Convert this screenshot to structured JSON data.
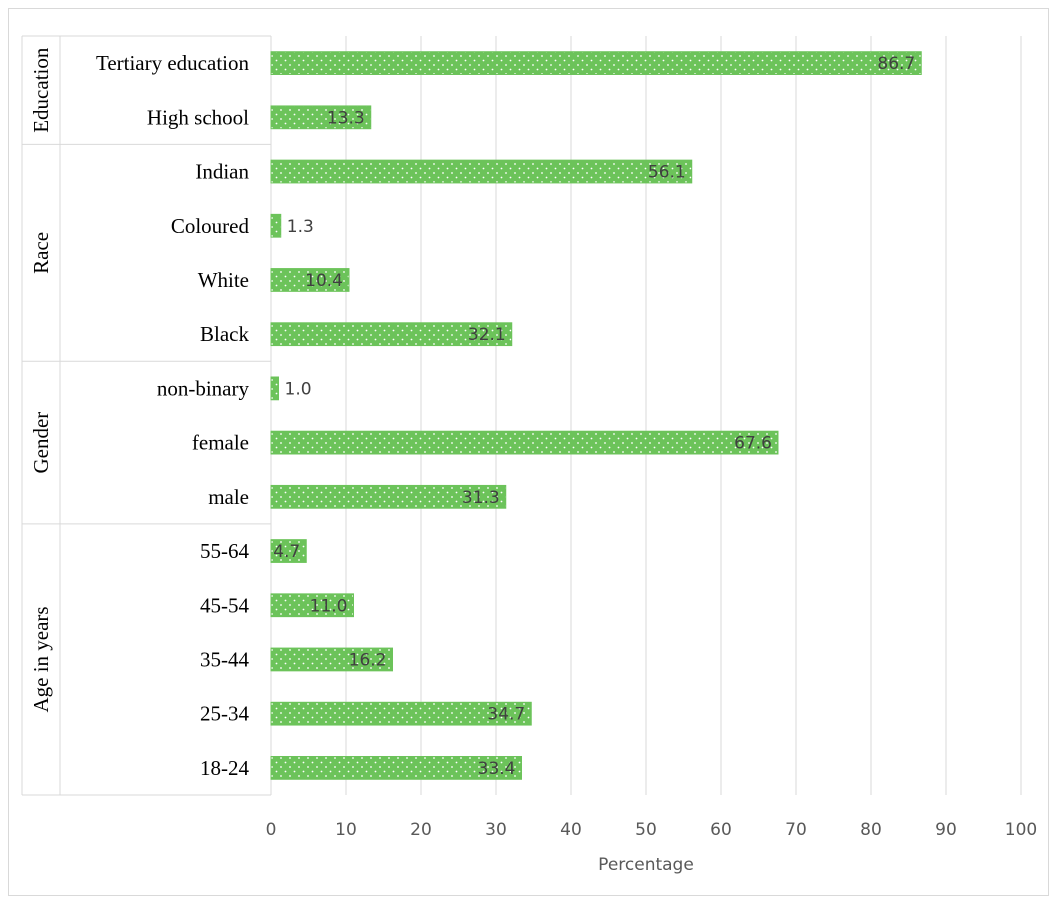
{
  "chart_data": {
    "type": "bar",
    "orientation": "horizontal",
    "xlabel": "Percentage",
    "xlim": [
      0,
      100
    ],
    "x_ticks": [
      0,
      10,
      20,
      30,
      40,
      50,
      60,
      70,
      80,
      90,
      100
    ],
    "grid": "vertical",
    "legend": "none",
    "bar_color": "#6cc35a",
    "groups": [
      {
        "name": "Education",
        "categories": [
          "Tertiary education",
          "High school"
        ],
        "values": [
          86.7,
          13.3
        ],
        "labels": [
          "86.7",
          "13.3"
        ]
      },
      {
        "name": "Race",
        "categories": [
          "Indian",
          "Coloured",
          "White",
          "Black"
        ],
        "values": [
          56.1,
          1.3,
          10.4,
          32.1
        ],
        "labels": [
          "56.1",
          "1.3",
          "10.4",
          "32.1"
        ]
      },
      {
        "name": "Gender",
        "categories": [
          "non-binary",
          "female",
          "male"
        ],
        "values": [
          1.0,
          67.6,
          31.3
        ],
        "labels": [
          "1.0",
          "67.6",
          "31.3"
        ]
      },
      {
        "name": "Age in years",
        "categories": [
          "55-64",
          "45-54",
          "35-44",
          "25-34",
          "18-24"
        ],
        "values": [
          4.7,
          11.0,
          16.2,
          34.7,
          33.4
        ],
        "labels": [
          "4.7",
          "11.0",
          "16.2",
          "34.7",
          "33.4"
        ]
      }
    ]
  }
}
